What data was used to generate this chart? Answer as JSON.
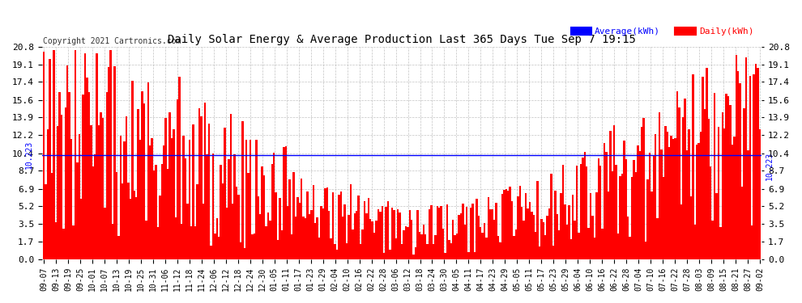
{
  "title": "Daily Solar Energy & Average Production Last 365 Days Tue Sep 7 19:15",
  "copyright": "Copyright 2021 Cartronics.com",
  "average_value": 10.223,
  "average_label": "10.223",
  "ylim": [
    0.0,
    20.8
  ],
  "yticks": [
    0.0,
    1.7,
    3.5,
    5.2,
    6.9,
    8.7,
    10.4,
    12.2,
    13.9,
    15.6,
    17.4,
    19.1,
    20.8
  ],
  "bar_color": "#ff0000",
  "avg_line_color": "#0000ff",
  "background_color": "#ffffff",
  "grid_color": "#aaaaaa",
  "title_color": "#000000",
  "legend_avg_color": "#0000ff",
  "legend_daily_color": "#ff0000",
  "xtick_labels": [
    "09-07",
    "09-13",
    "09-19",
    "09-25",
    "10-01",
    "10-07",
    "10-13",
    "10-19",
    "10-25",
    "10-31",
    "11-06",
    "11-12",
    "11-18",
    "11-24",
    "12-06",
    "12-12",
    "12-18",
    "12-24",
    "12-30",
    "01-05",
    "01-11",
    "01-17",
    "01-23",
    "01-29",
    "02-04",
    "02-10",
    "02-16",
    "02-22",
    "02-28",
    "03-06",
    "03-12",
    "03-18",
    "03-24",
    "03-30",
    "04-05",
    "04-11",
    "04-17",
    "04-23",
    "04-29",
    "05-05",
    "05-11",
    "05-17",
    "05-23",
    "05-29",
    "06-04",
    "06-10",
    "06-16",
    "06-22",
    "06-28",
    "07-04",
    "07-10",
    "07-16",
    "07-22",
    "07-28",
    "08-03",
    "08-09",
    "08-15",
    "08-21",
    "08-27",
    "09-02"
  ],
  "num_bars": 365,
  "seed": 42
}
